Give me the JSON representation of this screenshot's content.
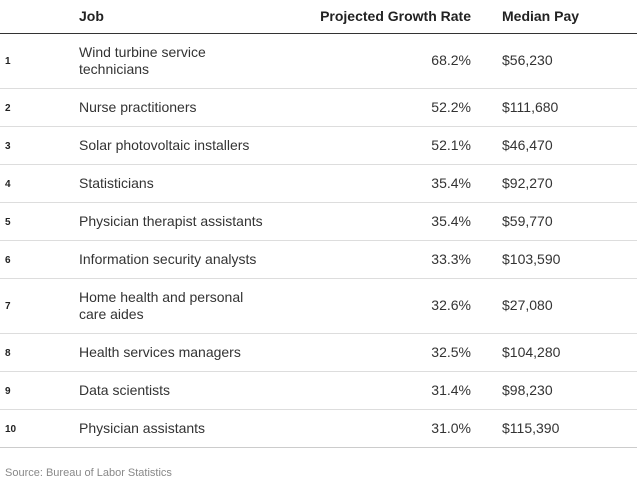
{
  "table": {
    "headers": {
      "job": "Job",
      "growth": "Projected Growth Rate",
      "pay": "Median Pay"
    },
    "rows": [
      {
        "rank": "1",
        "job": "Wind turbine service technicians",
        "growth": "68.2%",
        "pay": "$56,230"
      },
      {
        "rank": "2",
        "job": "Nurse practitioners",
        "growth": "52.2%",
        "pay": "$111,680"
      },
      {
        "rank": "3",
        "job": "Solar photovoltaic installers",
        "growth": "52.1%",
        "pay": "$46,470"
      },
      {
        "rank": "4",
        "job": "Statisticians",
        "growth": "35.4%",
        "pay": "$92,270"
      },
      {
        "rank": "5",
        "job": "Physician therapist assistants",
        "growth": "35.4%",
        "pay": "$59,770"
      },
      {
        "rank": "6",
        "job": "Information security analysts",
        "growth": "33.3%",
        "pay": "$103,590"
      },
      {
        "rank": "7",
        "job": "Home health and personal care aides",
        "growth": "32.6%",
        "pay": "$27,080"
      },
      {
        "rank": "8",
        "job": "Health services managers",
        "growth": "32.5%",
        "pay": "$104,280"
      },
      {
        "rank": "9",
        "job": "Data scientists",
        "growth": "31.4%",
        "pay": "$98,230"
      },
      {
        "rank": "10",
        "job": "Physician assistants",
        "growth": "31.0%",
        "pay": "$115,390"
      }
    ]
  },
  "source": "Source: Bureau of Labor Statistics"
}
